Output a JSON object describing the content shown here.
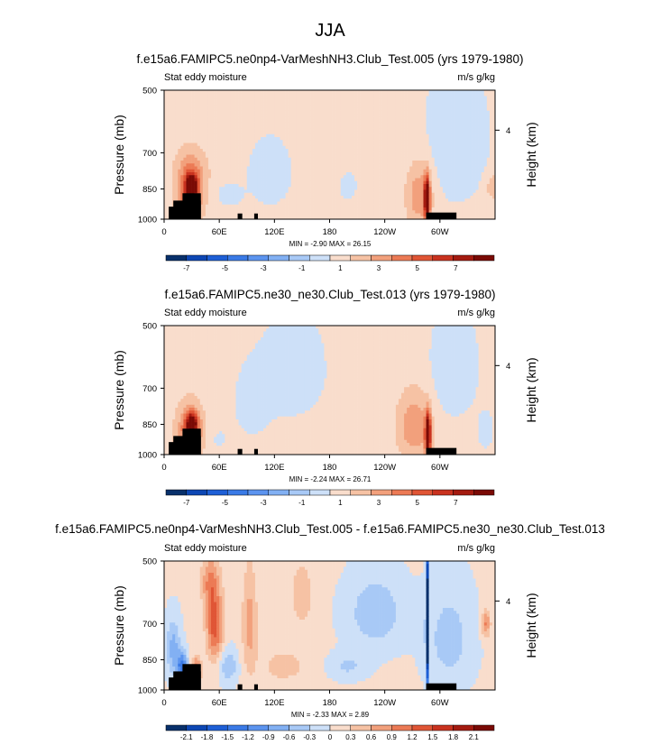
{
  "figure": {
    "season": "JJA",
    "colors": {
      "palette": [
        "#08306b",
        "#0d47b4",
        "#1e5fd6",
        "#3a7ae6",
        "#5c94ef",
        "#82b0f3",
        "#a8c9f6",
        "#cde0f8",
        "#f9ddcc",
        "#f6c2a4",
        "#f2a07c",
        "#ec7a55",
        "#e05535",
        "#c9321f",
        "#a41b10",
        "#7a0a05"
      ],
      "land": "#000000",
      "plot_border": "#000000"
    },
    "panels": [
      {
        "title": "f.e15a6.FAMIPC5.ne0np4-VarMeshNH3.Club_Test.005 (yrs 1979-1980)",
        "left_label": "Stat eddy moisture",
        "right_label": "m/s g/kg",
        "stats": "MIN =  -2.90  MAX =  26.15",
        "colorbar_labels": [
          "-7",
          "-5",
          "-3",
          "-1",
          "1",
          "3",
          "5",
          "7"
        ]
      },
      {
        "title": "f.e15a6.FAMIPC5.ne30_ne30.Club_Test.013 (yrs 1979-1980)",
        "left_label": "Stat eddy moisture",
        "right_label": "m/s g/kg",
        "stats": "MIN =  -2.24  MAX =  26.71",
        "colorbar_labels": [
          "-7",
          "-5",
          "-3",
          "-1",
          "1",
          "3",
          "5",
          "7"
        ]
      },
      {
        "title": "f.e15a6.FAMIPC5.ne0np4-VarMeshNH3.Club_Test.005 - f.e15a6.FAMIPC5.ne30_ne30.Club_Test.013",
        "left_label": "Stat eddy moisture",
        "right_label": "m/s g/kg",
        "stats": "MIN =  -2.33  MAX =  2.89",
        "colorbar_labels": [
          "-2.1",
          "-1.8",
          "-1.5",
          "-1.2",
          "-0.9",
          "-0.6",
          "-0.3",
          "0",
          "0.3",
          "0.6",
          "0.9",
          "1.2",
          "1.5",
          "1.8",
          "2.1"
        ]
      }
    ]
  },
  "chart_data": [
    {
      "type": "heatmap",
      "title": "f.e15a6.FAMIPC5.ne0np4-VarMeshNH3.Club_Test.005 (yrs 1979-1980)",
      "xlabel": "",
      "ylabel": "Pressure (mb)",
      "y2label": "Height (km)",
      "xticks": [
        "0",
        "60E",
        "120E",
        "180",
        "120W",
        "60W"
      ],
      "yticks": [
        "500",
        "700",
        "850",
        "1000"
      ],
      "y2ticks": [
        "4"
      ],
      "xlim": [
        0,
        360
      ],
      "ylim": [
        1000,
        500
      ],
      "levels": [
        -7,
        -6,
        -5,
        -4,
        -3,
        -2,
        -1,
        0,
        1,
        2,
        3,
        4,
        5,
        6,
        7
      ],
      "background_value": 0.4,
      "features": [
        {
          "lon": 30,
          "p": 840,
          "value": 8,
          "rx": 6,
          "rp": 50
        },
        {
          "lon": 28,
          "p": 880,
          "value": 4,
          "rx": 14,
          "rp": 120
        },
        {
          "lon": 30,
          "p": 760,
          "value": 1.5,
          "rx": 18,
          "rp": 90
        },
        {
          "lon": 286,
          "p": 900,
          "value": 9,
          "rx": 3,
          "rp": 100
        },
        {
          "lon": 278,
          "p": 880,
          "value": 2.5,
          "rx": 14,
          "rp": 150
        },
        {
          "lon": 358,
          "p": 840,
          "value": 1.5,
          "rx": 8,
          "rp": 60
        },
        {
          "lon": 318,
          "p": 650,
          "value": -1.2,
          "rx": 35,
          "rp": 250
        },
        {
          "lon": 115,
          "p": 780,
          "value": -1.0,
          "rx": 25,
          "rp": 150
        },
        {
          "lon": 70,
          "p": 880,
          "value": -0.8,
          "rx": 15,
          "rp": 60
        },
        {
          "lon": 200,
          "p": 840,
          "value": -0.7,
          "rx": 12,
          "rp": 80
        }
      ],
      "land": [
        [
          5,
          20,
          935
        ],
        [
          10,
          40,
          905
        ],
        [
          20,
          40,
          870
        ],
        [
          80,
          85,
          970
        ],
        [
          98,
          102,
          970
        ],
        [
          285,
          318,
          965
        ]
      ]
    },
    {
      "type": "heatmap",
      "title": "f.e15a6.FAMIPC5.ne30_ne30.Club_Test.013 (yrs 1979-1980)",
      "xlabel": "",
      "ylabel": "Pressure (mb)",
      "y2label": "Height (km)",
      "xticks": [
        "0",
        "60E",
        "120E",
        "180",
        "120W",
        "60W"
      ],
      "yticks": [
        "500",
        "700",
        "850",
        "1000"
      ],
      "y2ticks": [
        "4"
      ],
      "xlim": [
        0,
        360
      ],
      "ylim": [
        1000,
        500
      ],
      "levels": [
        -7,
        -6,
        -5,
        -4,
        -3,
        -2,
        -1,
        0,
        1,
        2,
        3,
        4,
        5,
        6,
        7
      ],
      "background_value": 0.4,
      "features": [
        {
          "lon": 30,
          "p": 850,
          "value": 7,
          "rx": 6,
          "rp": 50
        },
        {
          "lon": 28,
          "p": 880,
          "value": 3.5,
          "rx": 14,
          "rp": 120
        },
        {
          "lon": 287,
          "p": 900,
          "value": 9,
          "rx": 3,
          "rp": 100
        },
        {
          "lon": 272,
          "p": 860,
          "value": 2.5,
          "rx": 18,
          "rp": 150
        },
        {
          "lon": 140,
          "p": 630,
          "value": -0.9,
          "rx": 40,
          "rp": 200
        },
        {
          "lon": 95,
          "p": 760,
          "value": -0.8,
          "rx": 20,
          "rp": 150
        },
        {
          "lon": 60,
          "p": 920,
          "value": -0.6,
          "rx": 10,
          "rp": 50
        },
        {
          "lon": 315,
          "p": 620,
          "value": -1.3,
          "rx": 25,
          "rp": 180
        },
        {
          "lon": 350,
          "p": 880,
          "value": -0.8,
          "rx": 10,
          "rp": 100
        }
      ],
      "land": [
        [
          5,
          20,
          935
        ],
        [
          10,
          40,
          905
        ],
        [
          20,
          40,
          870
        ],
        [
          80,
          85,
          970
        ],
        [
          98,
          102,
          970
        ],
        [
          285,
          318,
          965
        ]
      ]
    },
    {
      "type": "heatmap",
      "title": "f.e15a6.FAMIPC5.ne0np4-VarMeshNH3.Club_Test.005 - f.e15a6.FAMIPC5.ne30_ne30.Club_Test.013",
      "xlabel": "",
      "ylabel": "Pressure (mb)",
      "y2label": "Height (km)",
      "xticks": [
        "0",
        "60E",
        "120E",
        "180",
        "120W",
        "60W"
      ],
      "yticks": [
        "500",
        "700",
        "850",
        "1000"
      ],
      "y2ticks": [
        "4"
      ],
      "xlim": [
        0,
        360
      ],
      "ylim": [
        1000,
        500
      ],
      "levels": [
        -2.1,
        -1.8,
        -1.5,
        -1.2,
        -0.9,
        -0.6,
        -0.3,
        0,
        0.3,
        0.6,
        0.9,
        1.2,
        1.5,
        1.8,
        2.1
      ],
      "background_value": 0.05,
      "features": [
        {
          "lon": 55,
          "p": 710,
          "value": 1.3,
          "rx": 9,
          "rp": 130
        },
        {
          "lon": 50,
          "p": 560,
          "value": 0.8,
          "rx": 10,
          "rp": 80
        },
        {
          "lon": 93,
          "p": 700,
          "value": 0.7,
          "rx": 8,
          "rp": 200
        },
        {
          "lon": 150,
          "p": 600,
          "value": 0.5,
          "rx": 12,
          "rp": 100
        },
        {
          "lon": 20,
          "p": 880,
          "value": -1.4,
          "rx": 6,
          "rp": 60
        },
        {
          "lon": 10,
          "p": 800,
          "value": -0.8,
          "rx": 8,
          "rp": 120
        },
        {
          "lon": 35,
          "p": 900,
          "value": 1.2,
          "rx": 5,
          "rp": 60
        },
        {
          "lon": 286,
          "p": 700,
          "value": -3.0,
          "rx": 1.5,
          "rp": 300
        },
        {
          "lon": 230,
          "p": 660,
          "value": -0.6,
          "rx": 30,
          "rp": 130
        },
        {
          "lon": 310,
          "p": 760,
          "value": -0.5,
          "rx": 25,
          "rp": 200
        },
        {
          "lon": 350,
          "p": 700,
          "value": 0.9,
          "rx": 5,
          "rp": 50
        },
        {
          "lon": 70,
          "p": 880,
          "value": -0.6,
          "rx": 10,
          "rp": 80
        },
        {
          "lon": 130,
          "p": 880,
          "value": 0.4,
          "rx": 25,
          "rp": 80
        },
        {
          "lon": 200,
          "p": 880,
          "value": -0.4,
          "rx": 20,
          "rp": 60
        }
      ],
      "land": [
        [
          5,
          20,
          935
        ],
        [
          10,
          40,
          905
        ],
        [
          20,
          40,
          870
        ],
        [
          80,
          85,
          970
        ],
        [
          98,
          102,
          970
        ],
        [
          285,
          318,
          965
        ]
      ]
    }
  ]
}
